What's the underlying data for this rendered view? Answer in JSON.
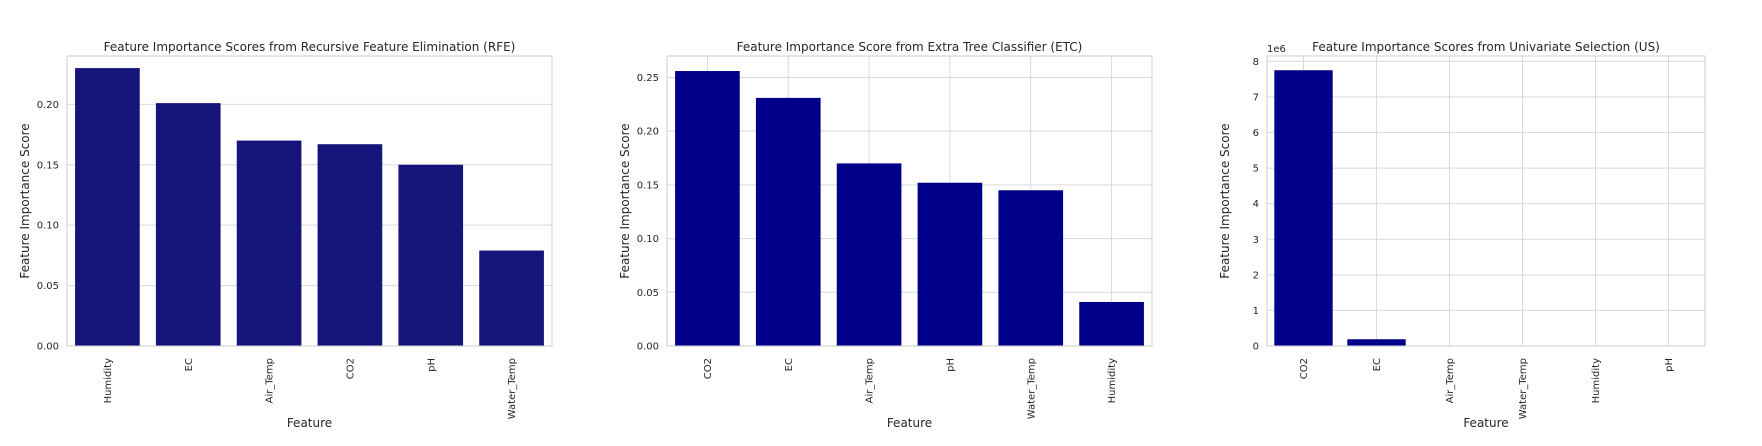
{
  "chart_data": [
    {
      "type": "bar",
      "title": "Feature Importance Scores from Recursive Feature Elimination (RFE)",
      "xlabel": "Feature",
      "ylabel": "Feature Importance Score",
      "categories": [
        "Humidity",
        "EC",
        "Air_Temp",
        "CO2",
        "pH",
        "Water_Temp"
      ],
      "values": [
        0.23,
        0.201,
        0.17,
        0.167,
        0.15,
        0.079
      ],
      "ylim": [
        0,
        0.24
      ],
      "yticks": [
        0.0,
        0.05,
        0.1,
        0.15,
        0.2
      ],
      "tick_decimals": 2,
      "offset_text": "",
      "bar_color": "#14147a",
      "grid": "horizontal",
      "xgrid": false
    },
    {
      "type": "bar",
      "title": "Feature Importance Score from Extra Tree Classifier (ETC)",
      "xlabel": "Feature",
      "ylabel": "Feature Importance Score",
      "categories": [
        "CO2",
        "EC",
        "Air_Temp",
        "pH",
        "Water_Temp",
        "Humidity"
      ],
      "values": [
        0.256,
        0.231,
        0.17,
        0.152,
        0.145,
        0.041
      ],
      "ylim": [
        0,
        0.27
      ],
      "yticks": [
        0.0,
        0.05,
        0.1,
        0.15,
        0.2,
        0.25
      ],
      "tick_decimals": 2,
      "offset_text": "",
      "bar_color": "#00008b",
      "grid": "both",
      "xgrid": true
    },
    {
      "type": "bar",
      "title": "Feature Importance Scores from Univariate Selection (US)",
      "xlabel": "Feature",
      "ylabel": "Feature Importance Score",
      "categories": [
        "CO2",
        "EC",
        "Air_Temp",
        "Water_Temp",
        "Humidity",
        "pH"
      ],
      "values": [
        7.75,
        0.19,
        0.005,
        0.003,
        0.002,
        0.001
      ],
      "ylim": [
        0,
        8.15
      ],
      "yticks": [
        0,
        1,
        2,
        3,
        4,
        5,
        6,
        7,
        8
      ],
      "tick_decimals": 0,
      "offset_text": "1e6",
      "bar_color": "#00008b",
      "grid": "both",
      "xgrid": true
    }
  ]
}
